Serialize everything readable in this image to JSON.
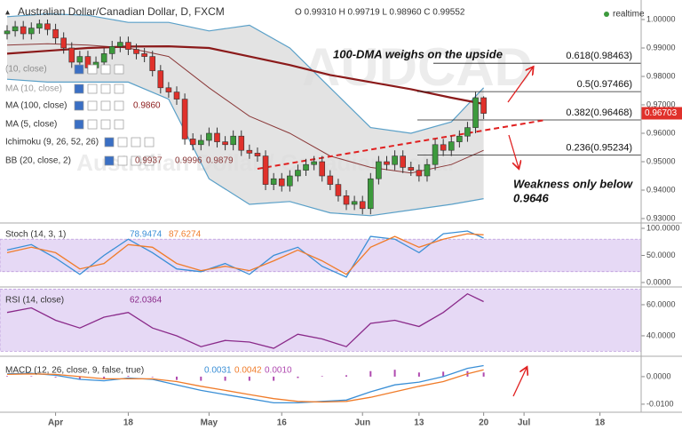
{
  "chart_data": [
    {
      "type": "candlestick",
      "title": "Australian Dollar/Canadian Dollar, D, FXCM",
      "ohlc_readout": "O 0.99310 H 0.99719 L 0.98960 C 0.99552",
      "status": "realtime",
      "watermark": [
        "AUDCAD",
        "Australian Dollar / Canadian Dollar"
      ],
      "up_color": "#3c9a3c",
      "down_color": "#e0312b",
      "xlim": [
        -0.88,
        78.5
      ],
      "xticks": [
        {
          "value": 6,
          "label": "Apr"
        },
        {
          "value": 15,
          "label": "18"
        },
        {
          "value": 25,
          "label": "May"
        },
        {
          "value": 34,
          "label": "16"
        },
        {
          "value": 44,
          "label": "Jun"
        },
        {
          "value": 51,
          "label": "13"
        },
        {
          "value": 59,
          "label": "20"
        },
        {
          "value": 64,
          "label": "Jul"
        },
        {
          "value": 73.4,
          "label": "18"
        }
      ],
      "ylim": [
        0.92875,
        1.006875
      ],
      "yticks": [
        {
          "value": 1,
          "label": "1.00000"
        },
        {
          "value": 0.99,
          "label": "0.99000"
        },
        {
          "value": 0.98,
          "label": "0.98000"
        },
        {
          "value": 0.97,
          "label": "0.97000"
        },
        {
          "value": 0.96,
          "label": "0.96000"
        },
        {
          "value": 0.95,
          "label": "0.95000"
        },
        {
          "value": 0.94,
          "label": "0.94000"
        },
        {
          "value": 0.93,
          "label": "0.93000"
        }
      ],
      "x": [
        0,
        1,
        2,
        3,
        4,
        5,
        6,
        7,
        8,
        9,
        10,
        11,
        12,
        13,
        14,
        15,
        16,
        17,
        18,
        19,
        20,
        21,
        22,
        23,
        24,
        25,
        26,
        27,
        28,
        29,
        30,
        31,
        32,
        33,
        34,
        35,
        36,
        37,
        38,
        39,
        40,
        41,
        42,
        43,
        44,
        45,
        46,
        47,
        48,
        49,
        50,
        51,
        52,
        53,
        54,
        55,
        56,
        57,
        58,
        59
      ],
      "open": [
        0.995,
        0.996,
        0.9975,
        0.995,
        0.997,
        0.9985,
        0.9965,
        0.9935,
        0.99,
        0.985,
        0.987,
        0.983,
        0.985,
        0.988,
        0.9905,
        0.992,
        0.9895,
        0.988,
        0.987,
        0.982,
        0.976,
        0.9745,
        0.972,
        0.958,
        0.956,
        0.9575,
        0.96,
        0.957,
        0.956,
        0.959,
        0.954,
        0.953,
        0.952,
        0.942,
        0.944,
        0.9415,
        0.945,
        0.947,
        0.949,
        0.95,
        0.945,
        0.942,
        0.938,
        0.935,
        0.936,
        0.9335,
        0.944,
        0.95,
        0.949,
        0.952,
        0.948,
        0.947,
        0.945,
        0.949,
        0.956,
        0.954,
        0.957,
        0.959,
        0.962,
        0.9725
      ],
      "high": [
        0.998,
        0.9995,
        0.9995,
        0.999,
        1.0,
        1.0,
        0.9985,
        0.9955,
        0.992,
        0.989,
        0.989,
        0.987,
        0.99,
        0.9925,
        0.994,
        0.994,
        0.9915,
        0.99,
        0.989,
        0.984,
        0.978,
        0.9765,
        0.974,
        0.96,
        0.9595,
        0.962,
        0.962,
        0.959,
        0.961,
        0.961,
        0.956,
        0.955,
        0.954,
        0.946,
        0.946,
        0.947,
        0.949,
        0.951,
        0.952,
        0.952,
        0.947,
        0.944,
        0.94,
        0.938,
        0.938,
        0.946,
        0.952,
        0.952,
        0.954,
        0.954,
        0.95,
        0.949,
        0.951,
        0.958,
        0.958,
        0.959,
        0.961,
        0.964,
        0.9745,
        0.973
      ],
      "low": [
        0.993,
        0.994,
        0.993,
        0.993,
        0.995,
        0.9945,
        0.9915,
        0.988,
        0.983,
        0.983,
        0.981,
        0.981,
        0.983,
        0.986,
        0.9885,
        0.9875,
        0.986,
        0.985,
        0.98,
        0.974,
        0.9725,
        0.97,
        0.956,
        0.954,
        0.954,
        0.9555,
        0.955,
        0.954,
        0.954,
        0.952,
        0.951,
        0.95,
        0.94,
        0.94,
        0.9395,
        0.9395,
        0.943,
        0.945,
        0.947,
        0.943,
        0.94,
        0.936,
        0.933,
        0.933,
        0.9315,
        0.9315,
        0.942,
        0.947,
        0.947,
        0.946,
        0.945,
        0.943,
        0.943,
        0.947,
        0.952,
        0.952,
        0.955,
        0.957,
        0.96,
        0.965
      ],
      "close": [
        0.996,
        0.9975,
        0.995,
        0.997,
        0.9985,
        0.9965,
        0.9935,
        0.99,
        0.985,
        0.987,
        0.983,
        0.985,
        0.988,
        0.9905,
        0.992,
        0.9895,
        0.988,
        0.987,
        0.982,
        0.976,
        0.9745,
        0.972,
        0.958,
        0.956,
        0.9575,
        0.96,
        0.957,
        0.956,
        0.959,
        0.954,
        0.953,
        0.952,
        0.942,
        0.944,
        0.9415,
        0.945,
        0.947,
        0.949,
        0.95,
        0.945,
        0.942,
        0.938,
        0.935,
        0.936,
        0.9335,
        0.944,
        0.95,
        0.949,
        0.952,
        0.948,
        0.947,
        0.945,
        0.949,
        0.956,
        0.954,
        0.957,
        0.959,
        0.962,
        0.9725,
        0.967
      ],
      "ma": {
        "color": "#8b1a1a",
        "x": [
          0,
          5,
          10,
          15,
          20,
          25,
          30,
          35,
          40,
          45,
          50,
          55,
          59
        ],
        "values": [
          0.988,
          0.989,
          0.99,
          0.9905,
          0.9906,
          0.99,
          0.987,
          0.984,
          0.9805,
          0.978,
          0.9755,
          0.9725,
          0.9703
        ]
      },
      "bollinger": {
        "color": "#5aa0c8",
        "mid_color": "#8b3a3a",
        "fill": "#dcdcdc",
        "x": [
          0,
          5,
          10,
          15,
          20,
          25,
          30,
          35,
          40,
          45,
          50,
          55,
          59
        ],
        "upper": [
          1.001,
          1.002,
          1.0015,
          0.999,
          0.999,
          0.996,
          0.998,
          0.99,
          0.976,
          0.962,
          0.96,
          0.964,
          0.976
        ],
        "middle": [
          0.991,
          0.9915,
          0.991,
          0.99,
          0.987,
          0.976,
          0.966,
          0.96,
          0.952,
          0.948,
          0.946,
          0.949,
          0.954
        ],
        "lower": [
          0.979,
          0.978,
          0.978,
          0.978,
          0.972,
          0.944,
          0.935,
          0.936,
          0.932,
          0.931,
          0.933,
          0.935,
          0.937
        ]
      },
      "indicator_legend": [
        {
          "label": "(10, close)"
        },
        {
          "label": "MA (10, close)"
        },
        {
          "label": "MA (100, close)",
          "values": [
            "0.9860"
          ]
        },
        {
          "label": "MA (5, close)"
        },
        {
          "label": "Ichimoku (9, 26, 52, 26)"
        },
        {
          "label": "BB (20, close, 2)",
          "values": [
            "0.9937",
            "0.9996",
            "0.9879"
          ]
        }
      ],
      "fib_levels": [
        {
          "value": 0.98463,
          "label": "0.618(0.98463)"
        },
        {
          "value": 0.97466,
          "label": "0.5(0.97466)"
        },
        {
          "value": 0.96468,
          "label": "0.382(0.96468)"
        },
        {
          "value": 0.95234,
          "label": "0.236(0.95234)"
        }
      ],
      "trendline": {
        "color": "#e02020",
        "x": [
          31,
          66.7
        ],
        "y": [
          0.9475,
          0.9647
        ]
      },
      "last_price": 0.96703,
      "annotations": [
        "100-DMA weighs on the upside",
        "Weakness only below",
        "0.9646"
      ]
    },
    {
      "type": "line",
      "label": "Stoch (14, 3, 1)",
      "readouts": [
        "78.9474",
        "87.6274"
      ],
      "band": [
        20,
        80
      ],
      "band_color": "#e6d9f5",
      "ylim": [
        -6.6,
        108.2
      ],
      "yticks": [
        {
          "value": 100,
          "label": "100.0000"
        },
        {
          "value": 50,
          "label": "50.0000"
        },
        {
          "value": 0,
          "label": "0.0000"
        }
      ],
      "x": [
        0,
        3,
        6,
        9,
        12,
        15,
        18,
        21,
        24,
        27,
        30,
        33,
        36,
        39,
        42,
        45,
        48,
        51,
        54,
        57,
        59
      ],
      "series": [
        {
          "color": "#3a8fd6",
          "values": [
            60,
            70,
            45,
            15,
            50,
            80,
            55,
            25,
            20,
            35,
            15,
            50,
            65,
            30,
            10,
            85,
            80,
            55,
            90,
            95,
            82
          ]
        },
        {
          "color": "#f07c2a",
          "values": [
            55,
            65,
            55,
            25,
            35,
            70,
            65,
            35,
            22,
            30,
            22,
            40,
            60,
            40,
            15,
            65,
            85,
            65,
            80,
            90,
            88
          ]
        }
      ]
    },
    {
      "type": "line",
      "label": "RSI (14, close)",
      "readouts": [
        "62.0364"
      ],
      "band": [
        30,
        70
      ],
      "band_color": "#e6d9f5",
      "ylim": [
        27.4,
        69.7
      ],
      "yticks": [
        {
          "value": 60,
          "label": "60.0000"
        },
        {
          "value": 40,
          "label": "40.0000"
        }
      ],
      "x": [
        0,
        3,
        6,
        9,
        12,
        15,
        18,
        21,
        24,
        27,
        30,
        33,
        36,
        39,
        42,
        45,
        48,
        51,
        54,
        57,
        59
      ],
      "series": [
        {
          "color": "#8a2a8a",
          "values": [
            55,
            58,
            50,
            45,
            52,
            55,
            45,
            40,
            33,
            37,
            36,
            32,
            41,
            38,
            33,
            48,
            50,
            46,
            55,
            67,
            62
          ]
        }
      ]
    },
    {
      "type": "line",
      "label": "MACD (12, 26, close, 9, false, true)",
      "readouts": [
        "0.0031",
        "0.0042",
        "0.0010"
      ],
      "ylim": [
        -0.0126,
        0.0061
      ],
      "yticks": [
        {
          "value": 0,
          "label": "0.0000"
        },
        {
          "value": -0.01,
          "label": "-0.0100"
        }
      ],
      "x": [
        0,
        3,
        6,
        9,
        12,
        15,
        18,
        21,
        24,
        27,
        30,
        33,
        36,
        39,
        42,
        45,
        48,
        51,
        54,
        57,
        59
      ],
      "series": [
        {
          "color": "#3a8fd6",
          "values": [
            0.001,
            0.0012,
            0.0005,
            -0.001,
            -0.0015,
            -0.0005,
            -0.001,
            -0.003,
            -0.005,
            -0.0065,
            -0.008,
            -0.0095,
            -0.0095,
            -0.009,
            -0.0085,
            -0.0055,
            -0.003,
            -0.002,
            0.0,
            0.003,
            0.004
          ]
        },
        {
          "color": "#f07c2a",
          "values": [
            0.0008,
            0.001,
            0.0008,
            0.0,
            -0.0008,
            -0.0008,
            -0.0008,
            -0.0018,
            -0.0035,
            -0.005,
            -0.0065,
            -0.008,
            -0.009,
            -0.0092,
            -0.009,
            -0.0075,
            -0.0055,
            -0.0035,
            -0.0018,
            0.001,
            0.0025
          ]
        }
      ],
      "histogram": {
        "color": "#b04ab0",
        "values": [
          0.0002,
          0.0002,
          -0.0003,
          -0.001,
          -0.0007,
          0.0003,
          -0.0002,
          -0.0012,
          -0.0015,
          -0.0015,
          -0.0015,
          -0.0015,
          -0.0005,
          0.0002,
          0.0005,
          0.002,
          0.0025,
          0.0015,
          0.0018,
          0.002,
          0.0015
        ]
      }
    }
  ]
}
